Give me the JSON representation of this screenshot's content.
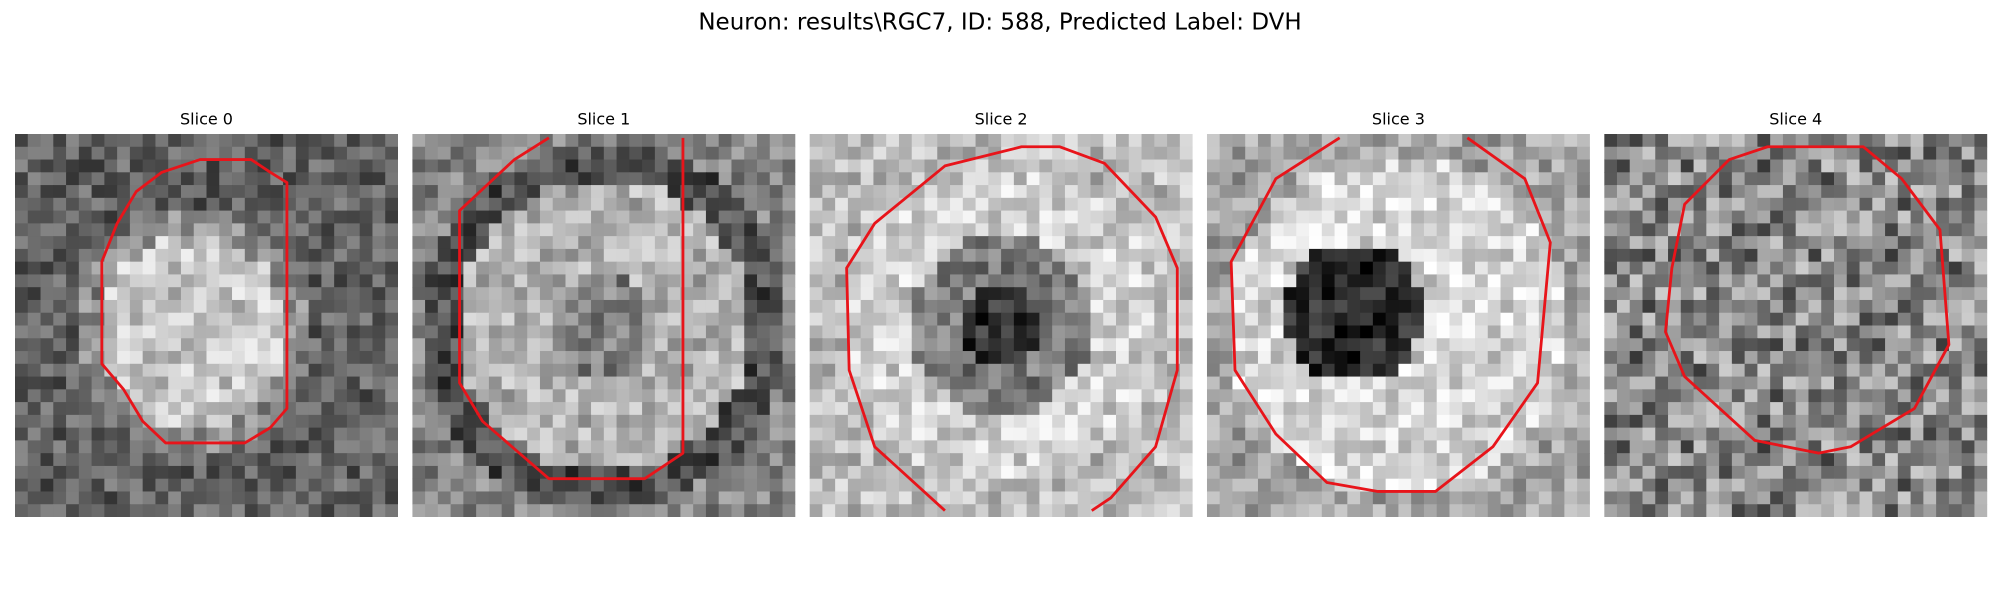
{
  "figure": {
    "title": "Neuron: results\\RGC7, ID: 588, Predicted Label: DVH",
    "panels": [
      "Slice 0",
      "Slice 1",
      "Slice 2",
      "Slice 3",
      "Slice 4"
    ]
  }
}
